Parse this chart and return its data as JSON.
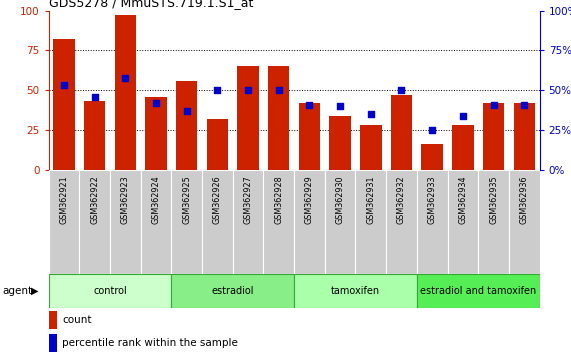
{
  "title": "GDS5278 / MmuSTS.719.1.S1_at",
  "samples": [
    "GSM362921",
    "GSM362922",
    "GSM362923",
    "GSM362924",
    "GSM362925",
    "GSM362926",
    "GSM362927",
    "GSM362928",
    "GSM362929",
    "GSM362930",
    "GSM362931",
    "GSM362932",
    "GSM362933",
    "GSM362934",
    "GSM362935",
    "GSM362936"
  ],
  "count_values": [
    82,
    43,
    97,
    46,
    56,
    32,
    65,
    65,
    42,
    34,
    28,
    47,
    16,
    28,
    42,
    42
  ],
  "percentile_values": [
    53,
    46,
    58,
    42,
    37,
    50,
    50,
    50,
    41,
    40,
    35,
    50,
    25,
    34,
    41,
    41
  ],
  "groups": [
    {
      "label": "control",
      "start": 0,
      "end": 4,
      "color": "#ccffcc"
    },
    {
      "label": "estradiol",
      "start": 4,
      "end": 8,
      "color": "#88ee88"
    },
    {
      "label": "tamoxifen",
      "start": 8,
      "end": 12,
      "color": "#aaffaa"
    },
    {
      "label": "estradiol and tamoxifen",
      "start": 12,
      "end": 16,
      "color": "#55ee55"
    }
  ],
  "bar_color": "#cc2200",
  "dot_color": "#0000cc",
  "left_axis_color": "#cc2200",
  "right_axis_color": "#0000cc",
  "ylim": [
    0,
    100
  ],
  "yticks": [
    0,
    25,
    50,
    75,
    100
  ],
  "agent_label": "agent",
  "legend_count": "count",
  "legend_percentile": "percentile rank within the sample",
  "background_color": "#ffffff",
  "sample_box_color": "#cccccc",
  "group_border_color": "#33aa33"
}
